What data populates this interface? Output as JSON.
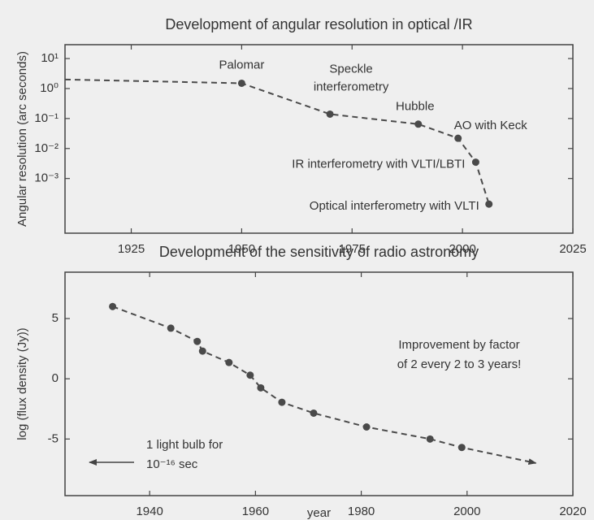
{
  "chart_data": [
    {
      "type": "line",
      "title": "Development of angular resolution in optical /IR",
      "y_label": "Angular resolution (arc seconds)",
      "log_y": true,
      "x": [
        1910,
        1950,
        1970,
        1990,
        1999,
        2003,
        2006
      ],
      "values": [
        2,
        1.5,
        0.14,
        0.065,
        0.022,
        0.0035,
        0.00014
      ],
      "point_labels": [
        null,
        [
          "Palomar"
        ],
        [
          "Speckle",
          "interferometry"
        ],
        [
          "Hubble"
        ],
        [
          "AO with Keck"
        ],
        [
          "IR interferometry with VLTI/LBTI"
        ],
        [
          "Optical interferometry with VLTI"
        ]
      ],
      "color": "#4a4a4a",
      "xlim": [
        1910,
        2025
      ],
      "xticks": [
        1925,
        1950,
        1975,
        2000,
        2025
      ],
      "ylim": [
        1.5e-05,
        29
      ],
      "yticks": [
        {
          "value": 10,
          "label": "10¹"
        },
        {
          "value": 1,
          "label": "10⁰"
        },
        {
          "value": 0.1,
          "label": "10⁻¹"
        },
        {
          "value": 0.01,
          "label": "10⁻²"
        },
        {
          "value": 0.001,
          "label": "10⁻³"
        }
      ]
    },
    {
      "type": "line",
      "title": "Development of the sensitivity of radio astronomy",
      "y_label": "log (flux density (Jy))",
      "x_label": "year",
      "x": [
        1933,
        1944,
        1949,
        1950,
        1955,
        1959,
        1961,
        1965,
        1971,
        1981,
        1993,
        1999,
        2013
      ],
      "values": [
        6.0,
        4.2,
        3.1,
        2.3,
        1.35,
        0.3,
        -0.75,
        -1.95,
        -2.85,
        -4.0,
        -5.0,
        -5.7,
        -7.0
      ],
      "line_end_arrow": true,
      "color": "#4a4a4a",
      "xlim": [
        1924,
        2020
      ],
      "xticks": [
        1940,
        1960,
        1980,
        2000,
        2020
      ],
      "ylim": [
        -9.7,
        8.85
      ],
      "yticks": [
        5,
        0,
        -5
      ],
      "annotations": [
        [
          "Improvement by factor",
          "of 2 every 2 to 3 years!"
        ],
        [
          "1 light bulb for",
          "10⁻¹⁶ sec"
        ]
      ]
    }
  ]
}
